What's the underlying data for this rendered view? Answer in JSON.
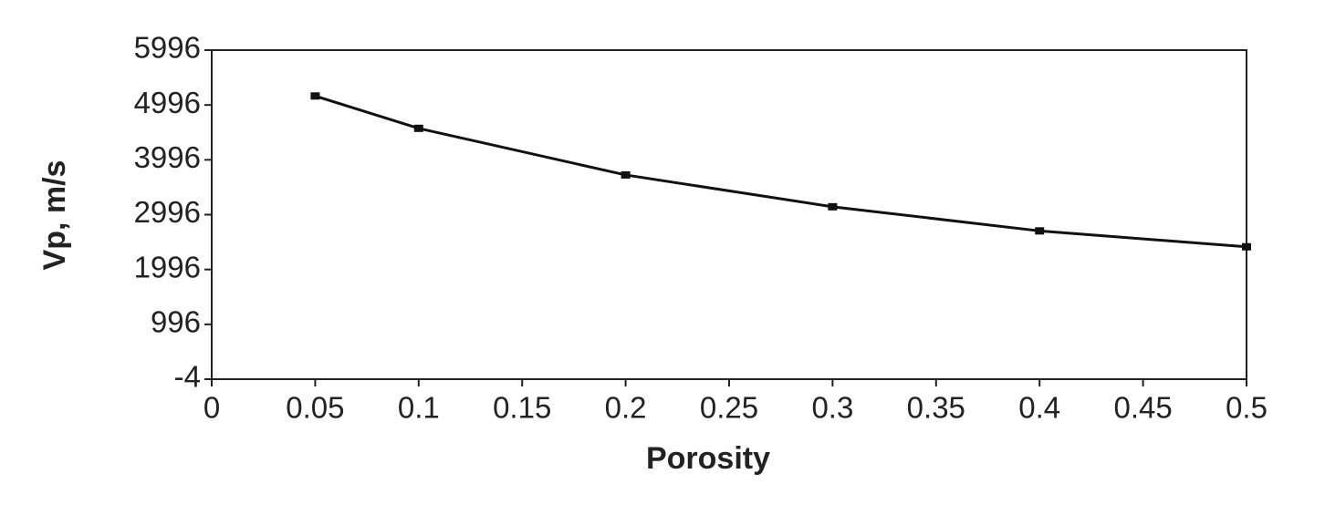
{
  "chart_data": {
    "type": "line",
    "x_label": "Porosity",
    "y_label": "Vp, m/s",
    "x": [
      0.05,
      0.1,
      0.2,
      0.3,
      0.4,
      0.5
    ],
    "series": [
      {
        "name": "Vp",
        "color": "#111111",
        "values": [
          5160,
          4570,
          3720,
          3140,
          2700,
          2410
        ]
      }
    ],
    "xlim": [
      0,
      0.5
    ],
    "xticks": [
      0,
      0.05,
      0.1,
      0.15,
      0.2,
      0.25,
      0.3,
      0.35,
      0.4,
      0.45,
      0.5
    ],
    "ylim": [
      -4,
      5996
    ],
    "yticks": [
      -4,
      996,
      1996,
      2996,
      3996,
      4996,
      5996
    ]
  }
}
